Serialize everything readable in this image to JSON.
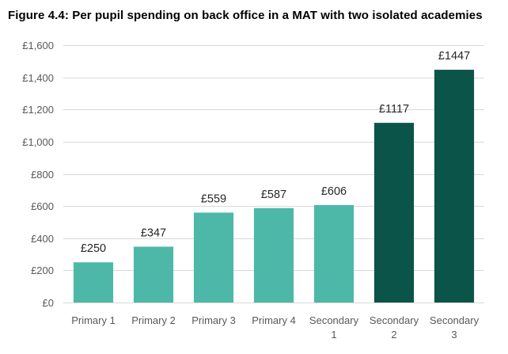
{
  "title": "Figure 4.4: Per pupil spending on back office in a MAT with two isolated academies",
  "colors": {
    "light": "#4db8a8",
    "dark": "#0b5449"
  },
  "chart_data": {
    "type": "bar",
    "title": "Figure 4.4: Per pupil spending on back office in a MAT with two isolated academies",
    "xlabel": "",
    "ylabel": "",
    "categories": [
      [
        "Primary 1"
      ],
      [
        "Primary 2"
      ],
      [
        "Primary 3"
      ],
      [
        "Primary 4"
      ],
      [
        "Secondary",
        "1"
      ],
      [
        "Secondary",
        "2"
      ],
      [
        "Secondary",
        "3"
      ]
    ],
    "values": [
      250,
      347,
      559,
      587,
      606,
      1117,
      1447
    ],
    "data_labels": [
      "£250",
      "£347",
      "£559",
      "£587",
      "£606",
      "£1117",
      "£1447"
    ],
    "bar_colors": [
      "light",
      "light",
      "light",
      "light",
      "light",
      "dark",
      "dark"
    ],
    "ylim": [
      0,
      1600
    ],
    "yticks": [
      0,
      200,
      400,
      600,
      800,
      1000,
      1200,
      1400,
      1600
    ],
    "ytick_labels": [
      "£0",
      "£200",
      "£400",
      "£600",
      "£800",
      "£1,000",
      "£1,200",
      "£1,400",
      "£1,600"
    ],
    "grid": true,
    "legend": "none"
  }
}
